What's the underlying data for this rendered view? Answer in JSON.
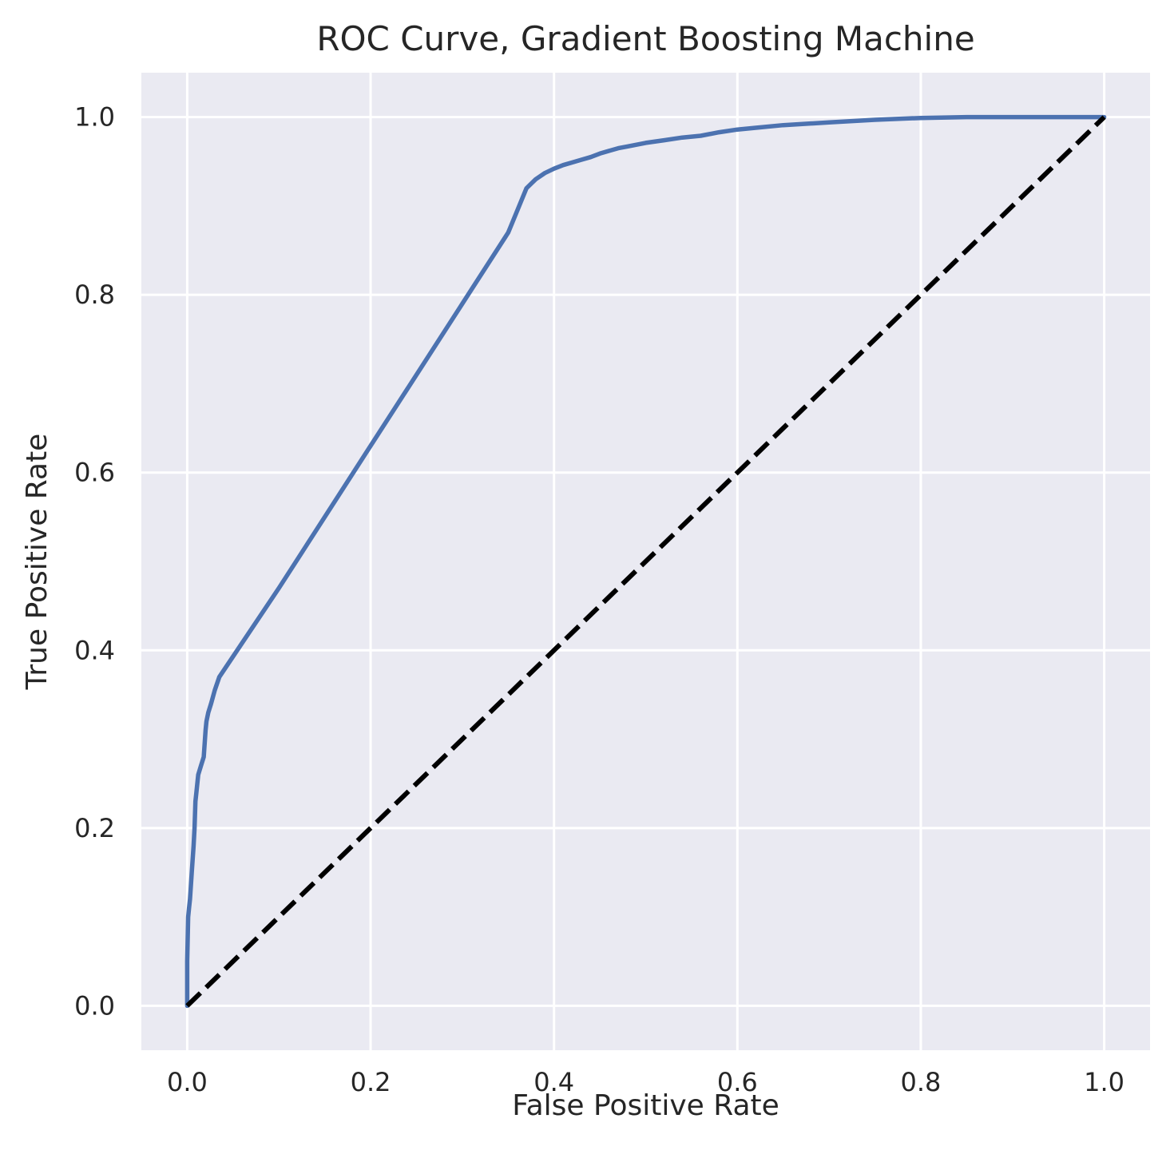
{
  "chart_data": {
    "type": "line",
    "title": "ROC Curve, Gradient Boosting Machine",
    "xlabel": "False Positive Rate",
    "ylabel": "True Positive Rate",
    "xlim": [
      -0.05,
      1.05
    ],
    "ylim": [
      -0.05,
      1.05
    ],
    "xticks": [
      0.0,
      0.2,
      0.4,
      0.6,
      0.8,
      1.0
    ],
    "xtick_labels": [
      "0.0",
      "0.2",
      "0.4",
      "0.6",
      "0.8",
      "1.0"
    ],
    "yticks": [
      0.0,
      0.2,
      0.4,
      0.6,
      0.8,
      1.0
    ],
    "ytick_labels": [
      "0.0",
      "0.2",
      "0.4",
      "0.6",
      "0.8",
      "1.0"
    ],
    "grid": true,
    "colors": {
      "plot_background": "#eaeaf2",
      "grid": "#ffffff",
      "roc_line": "#4c72b0",
      "reference_line": "#000000",
      "text": "#262626"
    },
    "series": [
      {
        "style": "solid",
        "x": [
          0.0,
          0.0,
          0.001,
          0.002,
          0.003,
          0.005,
          0.007,
          0.008,
          0.009,
          0.01,
          0.012,
          0.015,
          0.018,
          0.02,
          0.021,
          0.023,
          0.026,
          0.03,
          0.035,
          0.1,
          0.2,
          0.3,
          0.35,
          0.37,
          0.38,
          0.39,
          0.4,
          0.41,
          0.42,
          0.43,
          0.44,
          0.45,
          0.46,
          0.47,
          0.48,
          0.5,
          0.52,
          0.54,
          0.56,
          0.58,
          0.6,
          0.62,
          0.65,
          0.7,
          0.75,
          0.8,
          0.85,
          0.9,
          0.95,
          1.0
        ],
        "y": [
          0.0,
          0.05,
          0.1,
          0.11,
          0.12,
          0.15,
          0.18,
          0.2,
          0.23,
          0.24,
          0.26,
          0.27,
          0.28,
          0.31,
          0.32,
          0.33,
          0.34,
          0.355,
          0.37,
          0.47,
          0.63,
          0.79,
          0.87,
          0.92,
          0.93,
          0.937,
          0.942,
          0.946,
          0.949,
          0.952,
          0.955,
          0.959,
          0.962,
          0.965,
          0.967,
          0.971,
          0.974,
          0.977,
          0.979,
          0.983,
          0.986,
          0.988,
          0.991,
          0.994,
          0.997,
          0.999,
          1.0,
          1.0,
          1.0,
          1.0
        ]
      },
      {
        "style": "dashed",
        "x": [
          0.0,
          1.0
        ],
        "y": [
          0.0,
          1.0
        ]
      }
    ]
  }
}
